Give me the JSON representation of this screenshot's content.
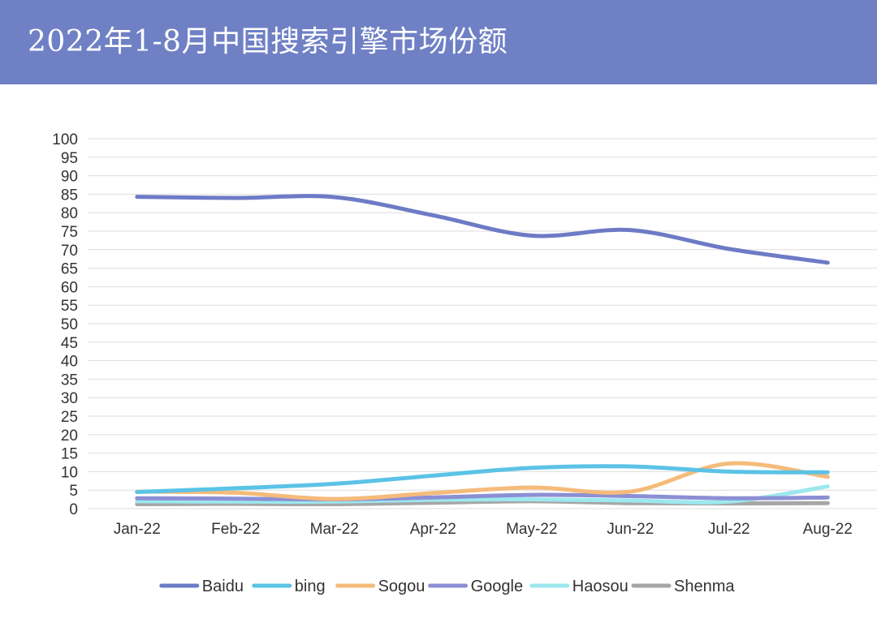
{
  "header": {
    "title": "2022年1-8月中国搜索引擎市场份额"
  },
  "colors": {
    "header_bg": "#6f80c5",
    "gridline": "#dedede"
  },
  "chart_data": {
    "type": "line",
    "categories": [
      "Jan-22",
      "Feb-22",
      "Mar-22",
      "Apr-22",
      "May-22",
      "Jun-22",
      "Jul-22",
      "Aug-22"
    ],
    "ylim": [
      0,
      100
    ],
    "yticks": [
      0,
      5,
      10,
      15,
      20,
      25,
      30,
      35,
      40,
      45,
      50,
      55,
      60,
      65,
      70,
      75,
      80,
      85,
      90,
      95,
      100
    ],
    "grid": true,
    "legend_position": "bottom",
    "series": [
      {
        "name": "Baidu",
        "color": "#6d7bc6",
        "values": [
          84.3,
          84.0,
          84.2,
          79.3,
          73.8,
          75.3,
          70.2,
          66.5
        ]
      },
      {
        "name": "bing",
        "color": "#5bc3e6",
        "values": [
          4.5,
          5.5,
          6.7,
          8.9,
          11.0,
          11.4,
          10.0,
          9.8
        ]
      },
      {
        "name": "Sogou",
        "color": "#f5bb7a",
        "values": [
          4.6,
          4.3,
          2.6,
          4.2,
          5.7,
          4.6,
          12.2,
          8.6
        ]
      },
      {
        "name": "Google",
        "color": "#8c8fd4",
        "values": [
          2.8,
          2.7,
          2.5,
          3.0,
          3.7,
          3.4,
          2.8,
          3.0
        ]
      },
      {
        "name": "Haosou",
        "color": "#9ce8ee",
        "values": [
          2.0,
          1.9,
          1.9,
          2.4,
          2.5,
          2.2,
          1.9,
          6.0
        ]
      },
      {
        "name": "Shenma",
        "color": "#a6a6a6",
        "values": [
          1.2,
          1.3,
          1.2,
          1.6,
          2.0,
          1.5,
          1.4,
          1.5
        ]
      }
    ]
  }
}
